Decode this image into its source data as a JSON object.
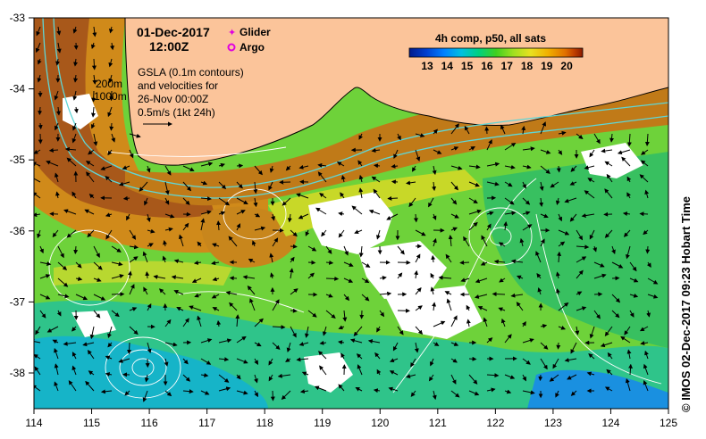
{
  "header": {
    "date": "01-Dec-2017",
    "time": "12:00Z"
  },
  "legend": {
    "items": [
      {
        "label": "Glider",
        "symbol": "star-icon",
        "color": "#e000e0"
      },
      {
        "label": "Argo",
        "symbol": "ring-icon",
        "color": "#e000e0"
      }
    ]
  },
  "notes": {
    "contours": [
      "200m",
      "1000m"
    ],
    "gsla_lines": [
      "GSLA (0.1m contours)",
      "and velocities for",
      "26-Nov 00:00Z",
      "0.5m/s (1kt 24h)"
    ]
  },
  "colorbar": {
    "title": "4h comp, p50, all sats",
    "ticks": [
      "13",
      "14",
      "15",
      "16",
      "17",
      "18",
      "19",
      "20"
    ],
    "colors": [
      "#001a8c",
      "#0040d0",
      "#0080ff",
      "#00c0e0",
      "#00d080",
      "#40d020",
      "#a0e020",
      "#e8e020",
      "#f0b000",
      "#e07000",
      "#c04000",
      "#8c1a00"
    ]
  },
  "axes": {
    "x_ticks": [
      "114",
      "115",
      "116",
      "117",
      "118",
      "119",
      "120",
      "121",
      "122",
      "123",
      "124",
      "125"
    ],
    "y_ticks": [
      "-33",
      "-34",
      "-35",
      "-36",
      "-37",
      "-38"
    ]
  },
  "credit": "© IMOS 02-Dec-2017 09:23 Hobart Time",
  "palette": {
    "land": "#fbc49a",
    "coast": "#000000",
    "bathymetry": "#5fd6d6",
    "gsla_contour": "#ffffff",
    "arrow": "#000000",
    "cloud": "#ffffff"
  }
}
